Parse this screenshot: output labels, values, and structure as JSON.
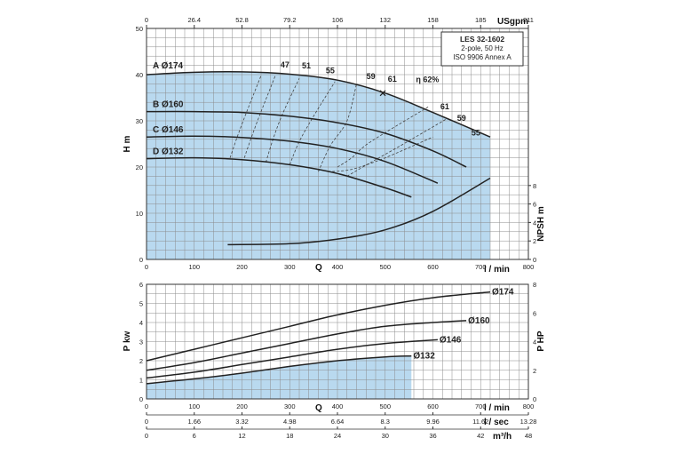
{
  "colors": {
    "fill": "#b9d9ef",
    "grid": "#8c8c8c",
    "curve": "#222222",
    "frame": "#333333"
  },
  "info_box": {
    "model": "LES 32-1602",
    "line2": "2-pole, 50 Hz",
    "line3": "ISO 9906 Annex A"
  },
  "axes": {
    "flow_label": "Q",
    "lmin_unit": "l / min",
    "usgpm_unit": "USgpm",
    "head_label": "H m",
    "npsh_label": "NPSH m",
    "pkw_label": "P kw",
    "php_label": "P HP",
    "lsec_unit": "l / sec",
    "m3h_unit": "m³/h",
    "usgpm_ticks": [
      "0",
      "26.4",
      "52.8",
      "79.2",
      "106",
      "132",
      "158",
      "185",
      "211"
    ],
    "lmin_ticks": [
      "0",
      "100",
      "200",
      "300",
      "400",
      "500",
      "600",
      "700",
      "800"
    ],
    "lsec_ticks": [
      "0",
      "1.66",
      "3.32",
      "4.98",
      "6.64",
      "8.3",
      "9.96",
      "11.62",
      "13.28"
    ],
    "m3h_ticks": [
      "0",
      "6",
      "12",
      "18",
      "24",
      "30",
      "36",
      "42",
      "48"
    ],
    "head_ticks": [
      "0",
      "10",
      "20",
      "30",
      "40",
      "50"
    ],
    "npsh_ticks": [
      "0",
      "2",
      "4",
      "6",
      "8"
    ],
    "pkw_ticks": [
      "0",
      "1",
      "2",
      "3",
      "4",
      "5",
      "6"
    ],
    "php_ticks": [
      "0",
      "2",
      "4",
      "6",
      "8"
    ]
  },
  "chart_data": [
    {
      "type": "line",
      "title": "",
      "xlabel": "Q (l / min)",
      "ylabel": "H m",
      "xlim": [
        0,
        800
      ],
      "ylim": [
        0,
        50
      ],
      "series": [
        {
          "name": "A Ø174",
          "x": [
            0,
            100,
            200,
            300,
            400,
            500,
            600,
            720
          ],
          "y": [
            40,
            40.5,
            40.6,
            40.1,
            38.8,
            36,
            31.8,
            26.5
          ]
        },
        {
          "name": "B Ø160",
          "x": [
            0,
            100,
            200,
            300,
            400,
            500,
            600,
            670
          ],
          "y": [
            32,
            32,
            31.8,
            31,
            29.6,
            27.3,
            23.5,
            20
          ]
        },
        {
          "name": "C Ø146",
          "x": [
            0,
            100,
            200,
            300,
            400,
            500,
            610
          ],
          "y": [
            26.5,
            26.7,
            26.4,
            25.6,
            24,
            21.2,
            16.5
          ]
        },
        {
          "name": "D Ø132",
          "x": [
            0,
            100,
            200,
            300,
            400,
            500,
            555
          ],
          "y": [
            21.8,
            22,
            21.6,
            20.5,
            18.6,
            15.5,
            13.5
          ]
        }
      ],
      "efficiency_labels": [
        "47",
        "51",
        "55",
        "59",
        "61",
        "η 62%",
        "61",
        "59",
        "55"
      ]
    },
    {
      "type": "line",
      "title": "",
      "xlabel": "Q (l / min)",
      "ylabel": "NPSH m",
      "xlim": [
        0,
        800
      ],
      "ylim": [
        0,
        8
      ],
      "series": [
        {
          "name": "NPSH",
          "x": [
            170,
            300,
            400,
            500,
            600,
            720
          ],
          "y": [
            1.6,
            1.7,
            2.2,
            3.2,
            5.2,
            8.8
          ]
        }
      ]
    },
    {
      "type": "line",
      "title": "",
      "xlabel": "Q (l / min)",
      "ylabel": "P kw",
      "xlim": [
        0,
        800
      ],
      "ylim": [
        0,
        6
      ],
      "series": [
        {
          "name": "Ø174",
          "x": [
            0,
            100,
            200,
            300,
            400,
            500,
            600,
            720
          ],
          "y": [
            2.0,
            2.6,
            3.2,
            3.8,
            4.4,
            4.9,
            5.3,
            5.6
          ]
        },
        {
          "name": "Ø160",
          "x": [
            0,
            100,
            200,
            300,
            400,
            500,
            600,
            670
          ],
          "y": [
            1.5,
            1.9,
            2.4,
            2.9,
            3.4,
            3.8,
            4.0,
            4.1
          ]
        },
        {
          "name": "Ø146",
          "x": [
            0,
            100,
            200,
            300,
            400,
            500,
            610
          ],
          "y": [
            1.1,
            1.4,
            1.8,
            2.2,
            2.6,
            2.9,
            3.1
          ]
        },
        {
          "name": "Ø132",
          "x": [
            0,
            100,
            200,
            300,
            400,
            500,
            555
          ],
          "y": [
            0.8,
            1.05,
            1.35,
            1.7,
            2.0,
            2.2,
            2.25
          ]
        }
      ]
    }
  ]
}
